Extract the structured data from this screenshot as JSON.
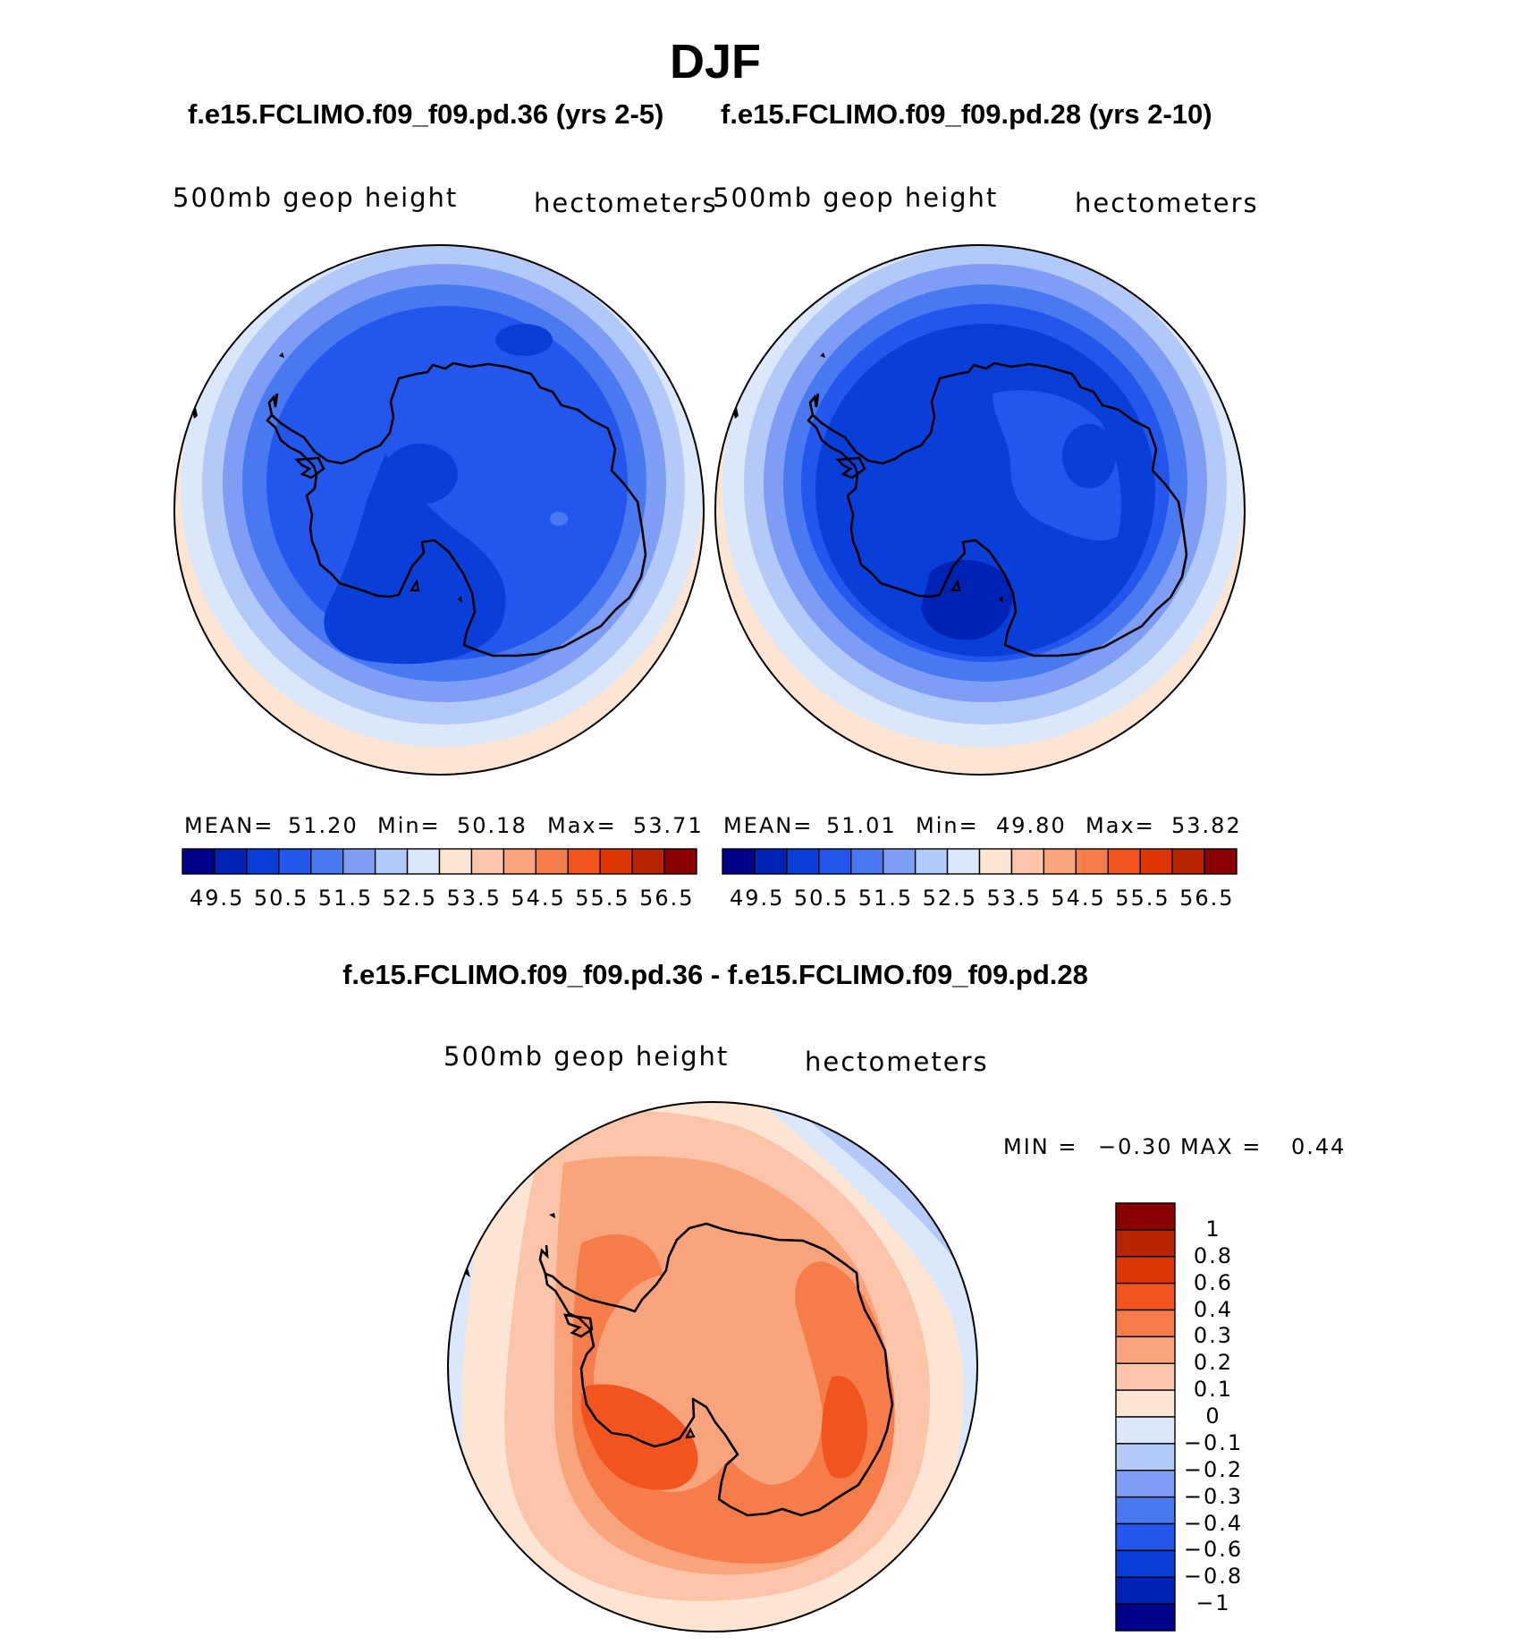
{
  "title": "DJF",
  "panels": [
    {
      "case_title": "f.e15.FCLIMO.f09_f09.pd.36 (yrs 2-5)",
      "variable": "500mb geop height",
      "units": "hectometers",
      "mean_label": "MEAN=",
      "mean": "51.20",
      "min_label": "Min=",
      "min": "50.18",
      "max_label": "Max=",
      "max": "53.71"
    },
    {
      "case_title": "f.e15.FCLIMO.f09_f09.pd.28 (yrs 2-10)",
      "variable": "500mb geop height",
      "units": "hectometers",
      "mean_label": "MEAN=",
      "mean": "51.01",
      "min_label": "Min=",
      "min": "49.80",
      "max_label": "Max=",
      "max": "53.82"
    }
  ],
  "colorbar": {
    "tick_labels": [
      "49.5",
      "50.5",
      "51.5",
      "52.5",
      "53.5",
      "54.5",
      "55.5",
      "56.5"
    ],
    "levels": [
      49.5,
      50,
      50.5,
      51,
      51.5,
      52,
      52.5,
      53,
      53.5,
      54,
      54.5,
      55,
      55.5,
      56,
      56.5
    ],
    "colors": [
      "#00008c",
      "#0022b4",
      "#0a3ed8",
      "#2356ec",
      "#4a78f0",
      "#7d9ef4",
      "#b3c9f7",
      "#dbe8fb",
      "#fde5d3",
      "#fcc5a9",
      "#f9a47c",
      "#f67c49",
      "#f2541e",
      "#de3505",
      "#b72400",
      "#8a0000"
    ]
  },
  "difference": {
    "title": "f.e15.FCLIMO.f09_f09.pd.36 - f.e15.FCLIMO.f09_f09.pd.28",
    "variable": "500mb geop height",
    "units": "hectometers",
    "min_label": "MIN =",
    "min": "−0.30",
    "max_label": "MAX =",
    "max": "0.44",
    "colorbar_labels": [
      "1",
      "0.8",
      "0.6",
      "0.4",
      "0.3",
      "0.2",
      "0.1",
      "0",
      "−0.1",
      "−0.2",
      "−0.3",
      "−0.4",
      "−0.6",
      "−0.8",
      "−1"
    ],
    "colorbar_colors": [
      "#8a0000",
      "#b72400",
      "#de3505",
      "#f2541e",
      "#f67c49",
      "#f9a47c",
      "#fcc5a9",
      "#fde5d3",
      "#dbe8fb",
      "#b3c9f7",
      "#7d9ef4",
      "#4a78f0",
      "#2356ec",
      "#0a3ed8",
      "#0022b4",
      "#00008c"
    ]
  },
  "colors": {
    "land_outline": "#000000",
    "map_border": "#000000"
  }
}
